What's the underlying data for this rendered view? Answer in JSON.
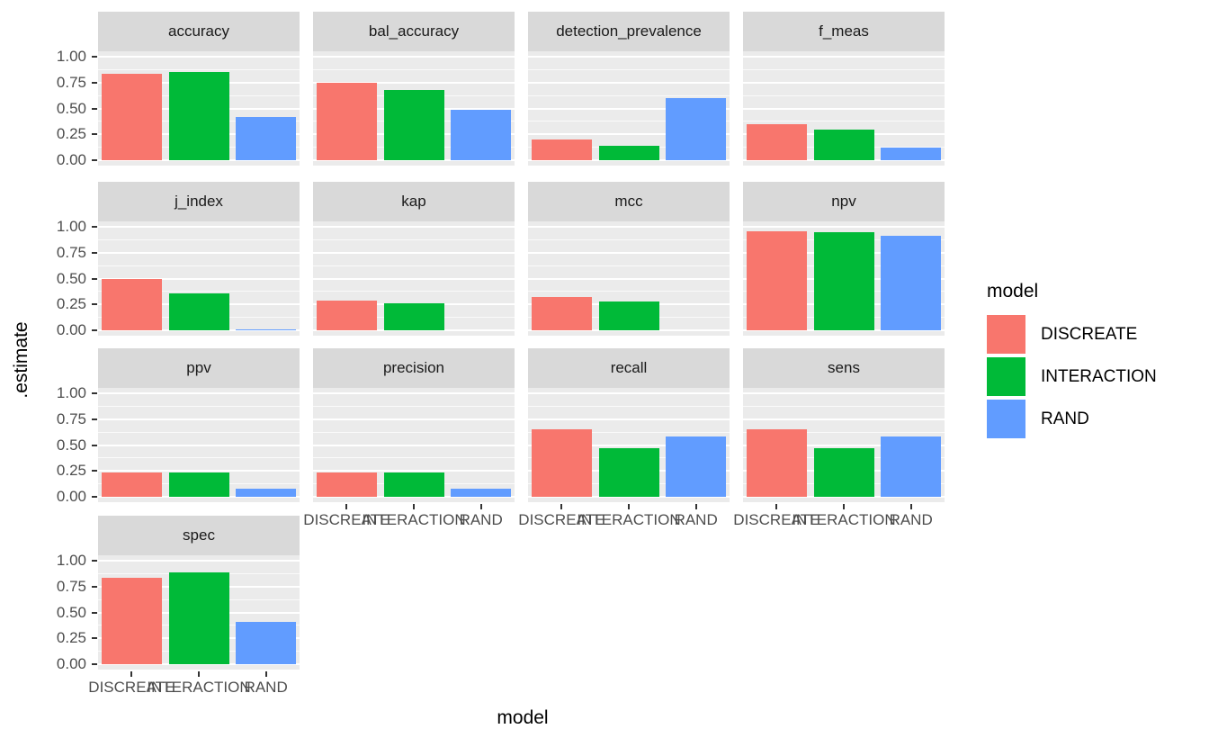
{
  "figure": {
    "x_axis_title": "model",
    "y_axis_title": ".estimate"
  },
  "legend": {
    "title": "model",
    "entries": [
      {
        "label": "DISCREATE",
        "color": "#F8766D"
      },
      {
        "label": "INTERACTION",
        "color": "#00BA38"
      },
      {
        "label": "RAND",
        "color": "#619CFF"
      }
    ]
  },
  "colors": {
    "panel_bg": "#EBEBEB",
    "strip_bg": "#D9D9D9",
    "grid_major": "#FFFFFF",
    "tick": "#333333",
    "axis_text": "#4D4D4D",
    "bar_discreate": "#F8766D",
    "bar_interaction": "#00BA38",
    "bar_rand": "#619CFF"
  },
  "chart_data": {
    "type": "bar",
    "title": "",
    "xlabel": "model",
    "ylabel": ".estimate",
    "categories": [
      "DISCREATE",
      "INTERACTION",
      "RAND"
    ],
    "series_colors": [
      "#F8766D",
      "#00BA38",
      "#619CFF"
    ],
    "ylim": [
      0,
      1
    ],
    "y_major_ticks": [
      1.0,
      0.75,
      0.5,
      0.25,
      0.0
    ],
    "y_tick_labels": [
      "1.00",
      "0.75",
      "0.50",
      "0.25",
      "0.00"
    ],
    "y_minor_ticks": [
      0.875,
      0.625,
      0.375,
      0.125
    ],
    "legend_position": "right",
    "grid": true,
    "facet_layout": {
      "rows": 4,
      "cols": 4
    },
    "facets": [
      {
        "label": "accuracy",
        "row": 0,
        "col": 0,
        "x_axis": false,
        "values": [
          0.84,
          0.86,
          0.42
        ]
      },
      {
        "label": "bal_accuracy",
        "row": 0,
        "col": 1,
        "x_axis": false,
        "values": [
          0.75,
          0.68,
          0.49
        ]
      },
      {
        "label": "detection_prevalence",
        "row": 0,
        "col": 2,
        "x_axis": false,
        "values": [
          0.2,
          0.14,
          0.6
        ]
      },
      {
        "label": "f_meas",
        "row": 0,
        "col": 3,
        "x_axis": false,
        "values": [
          0.35,
          0.3,
          0.12
        ]
      },
      {
        "label": "j_index",
        "row": 1,
        "col": 0,
        "x_axis": false,
        "values": [
          0.5,
          0.36,
          0.01
        ]
      },
      {
        "label": "kap",
        "row": 1,
        "col": 1,
        "x_axis": false,
        "values": [
          0.29,
          0.26,
          0.0
        ]
      },
      {
        "label": "mcc",
        "row": 1,
        "col": 2,
        "x_axis": false,
        "values": [
          0.32,
          0.28,
          0.0
        ]
      },
      {
        "label": "npv",
        "row": 1,
        "col": 3,
        "x_axis": false,
        "values": [
          0.96,
          0.95,
          0.92
        ]
      },
      {
        "label": "ppv",
        "row": 2,
        "col": 0,
        "x_axis": false,
        "values": [
          0.24,
          0.24,
          0.08
        ]
      },
      {
        "label": "precision",
        "row": 2,
        "col": 1,
        "x_axis": true,
        "values": [
          0.24,
          0.24,
          0.08
        ]
      },
      {
        "label": "recall",
        "row": 2,
        "col": 2,
        "x_axis": true,
        "values": [
          0.66,
          0.47,
          0.59
        ]
      },
      {
        "label": "sens",
        "row": 2,
        "col": 3,
        "x_axis": true,
        "values": [
          0.66,
          0.47,
          0.59
        ]
      },
      {
        "label": "spec",
        "row": 3,
        "col": 0,
        "x_axis": true,
        "values": [
          0.84,
          0.89,
          0.41
        ]
      }
    ]
  }
}
